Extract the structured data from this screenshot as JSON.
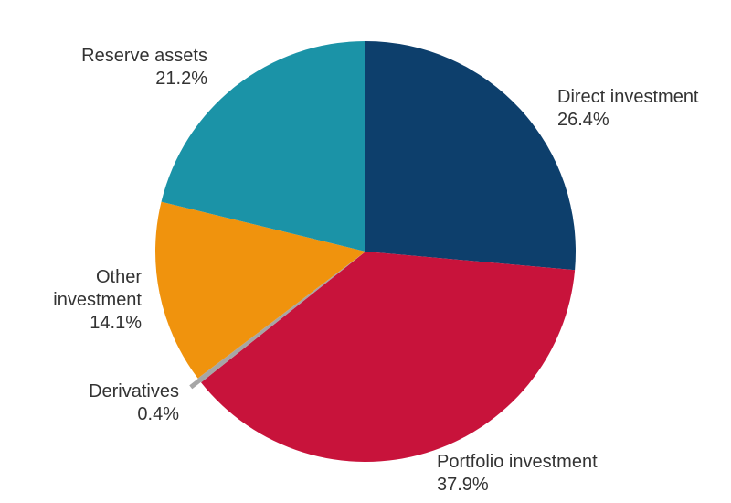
{
  "chart_data": {
    "type": "pie",
    "title": "",
    "start_angle_deg": 0,
    "direction": "clockwise",
    "slices": [
      {
        "label": "Direct investment",
        "value": 26.4,
        "value_label": "26.4%",
        "color": "#0d3f6c"
      },
      {
        "label": "Portfolio investment",
        "value": 37.9,
        "value_label": "37.9%",
        "color": "#c8133b"
      },
      {
        "label": "Derivatives",
        "value": 0.4,
        "value_label": "0.4%",
        "color": "#a6a6a6"
      },
      {
        "label": "Other investment",
        "value": 14.1,
        "value_label": "14.1%",
        "color": "#f0930d"
      },
      {
        "label": "Reserve assets",
        "value": 21.2,
        "value_label": "21.2%",
        "color": "#1b93a7"
      }
    ]
  }
}
